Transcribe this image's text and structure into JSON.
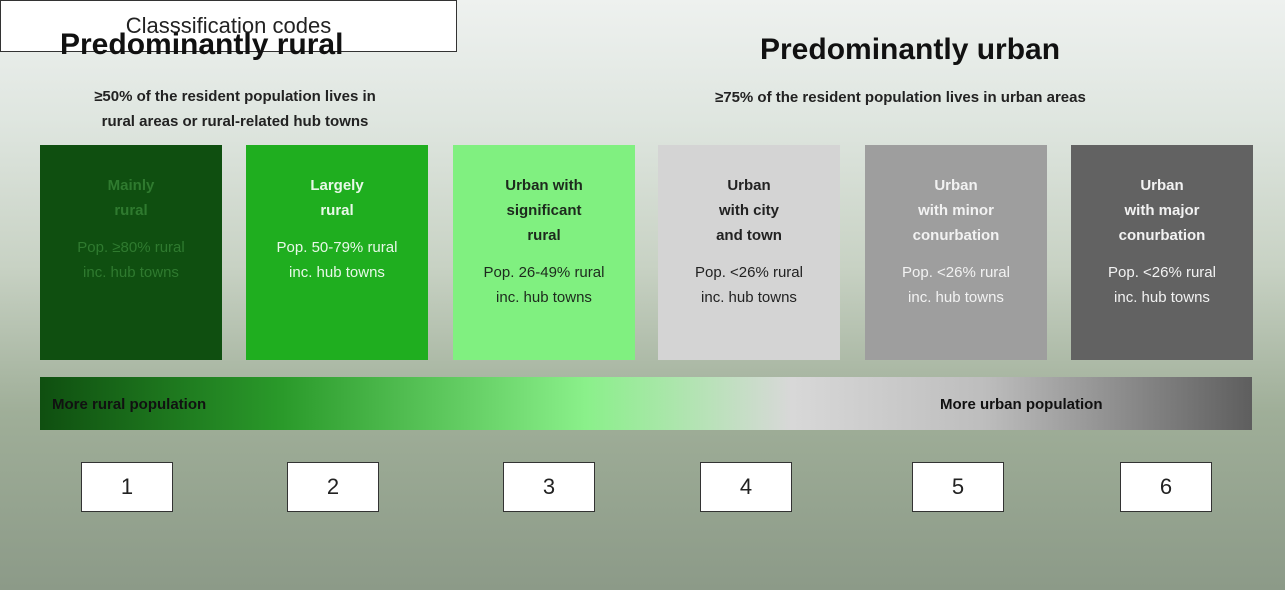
{
  "header": {
    "rural_title": "Predominantly rural",
    "rural_subtitle": [
      "≥50% of the resident population lives in",
      "rural areas or rural-related hub towns"
    ],
    "urban_title": "Predominantly urban",
    "urban_subtitle": "≥75% of the resident population lives in urban areas"
  },
  "boxes": [
    {
      "title": [
        "Mainly",
        "rural"
      ],
      "population": [
        "Pop. ≥80% rural",
        "inc. hub towns"
      ],
      "color": "#0f4f10",
      "text_color": "#2f7a2f",
      "code": "1"
    },
    {
      "title": [
        "Largely",
        "rural"
      ],
      "population": [
        "Pop. 50-79% rural",
        "inc. hub towns"
      ],
      "color": "#1fae1f",
      "text_color": "#e8f8e8",
      "code": "2"
    },
    {
      "title": [
        "Urban with",
        "significant",
        "rural"
      ],
      "population": [
        "Pop. 26-49% rural",
        "inc. hub towns"
      ],
      "color": "#80f080",
      "text_color": "#1d2a1d",
      "code": "3"
    },
    {
      "title": [
        "Urban",
        "with city",
        "and town"
      ],
      "population": [
        "Pop. <26% rural",
        "inc. hub towns"
      ],
      "color": "#d4d4d4",
      "text_color": "#222222",
      "code": "4"
    },
    {
      "title": [
        "Urban",
        "with minor",
        "conurbation"
      ],
      "population": [
        "Pop. <26% rural",
        "inc. hub towns"
      ],
      "color": "#9e9e9e",
      "text_color": "#f2f2f2",
      "code": "5"
    },
    {
      "title": [
        "Urban",
        "with major",
        "conurbation"
      ],
      "population": [
        "Pop. <26% rural",
        "inc. hub towns"
      ],
      "color": "#626262",
      "text_color": "#f2f2f2",
      "code": "6"
    }
  ],
  "scale": {
    "left_label": "More rural population",
    "right_label": "More urban population"
  },
  "codes_label": "Classsification codes"
}
